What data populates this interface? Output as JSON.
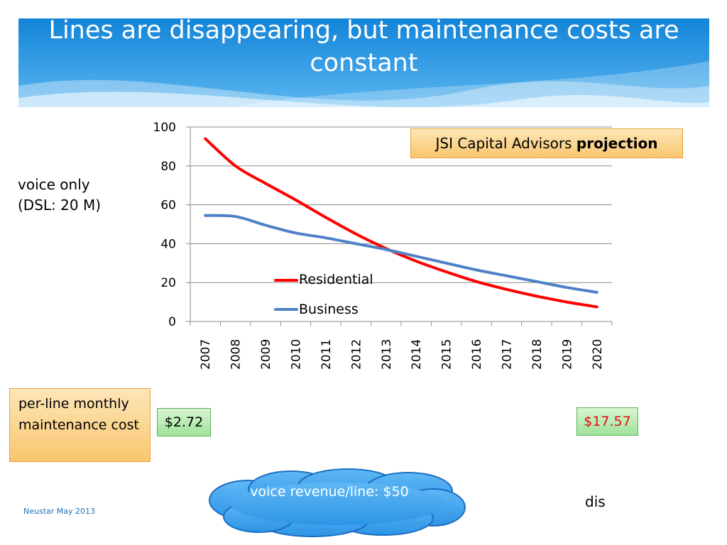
{
  "slide": {
    "title": "Lines are disappearing, but maintenance costs are constant",
    "side_note_line1": "voice only",
    "side_note_line2": "(DSL: 20 M)",
    "projection_prefix": "JSI Capital Advisors",
    "projection_bold": "projection",
    "cost_label": "per-line monthly maintenance cost",
    "price_start": "$2.72",
    "price_end": "$17.57",
    "cloud_text": "voice revenue/line: $50",
    "dis_text": "dis",
    "footer": "Neustar May 2013",
    "colors": {
      "header_blue": "#1a8fe0",
      "price_end_red": "#e01010",
      "residential": "#ff0000",
      "business": "#4f81c7"
    }
  },
  "chart_data": {
    "type": "line",
    "categories": [
      "2007",
      "2008",
      "2009",
      "2010",
      "2011",
      "2012",
      "2013",
      "2014",
      "2015",
      "2016",
      "2017",
      "2018",
      "2019",
      "2020"
    ],
    "series": [
      {
        "name": "Residential",
        "values": [
          94,
          80,
          71,
          62.5,
          53.5,
          45,
          37.5,
          31,
          25.5,
          20.5,
          16.5,
          13,
          10,
          7.5
        ]
      },
      {
        "name": "Business",
        "values": [
          54.5,
          54,
          49.5,
          45.5,
          43,
          40,
          37,
          33.5,
          30,
          26.5,
          23.5,
          20.5,
          17.5,
          15
        ]
      }
    ],
    "ylim": [
      0,
      100
    ],
    "yticks": [
      0,
      20,
      40,
      60,
      80,
      100
    ],
    "grid": true,
    "legend_position": "center",
    "xlabel": "",
    "ylabel": ""
  }
}
